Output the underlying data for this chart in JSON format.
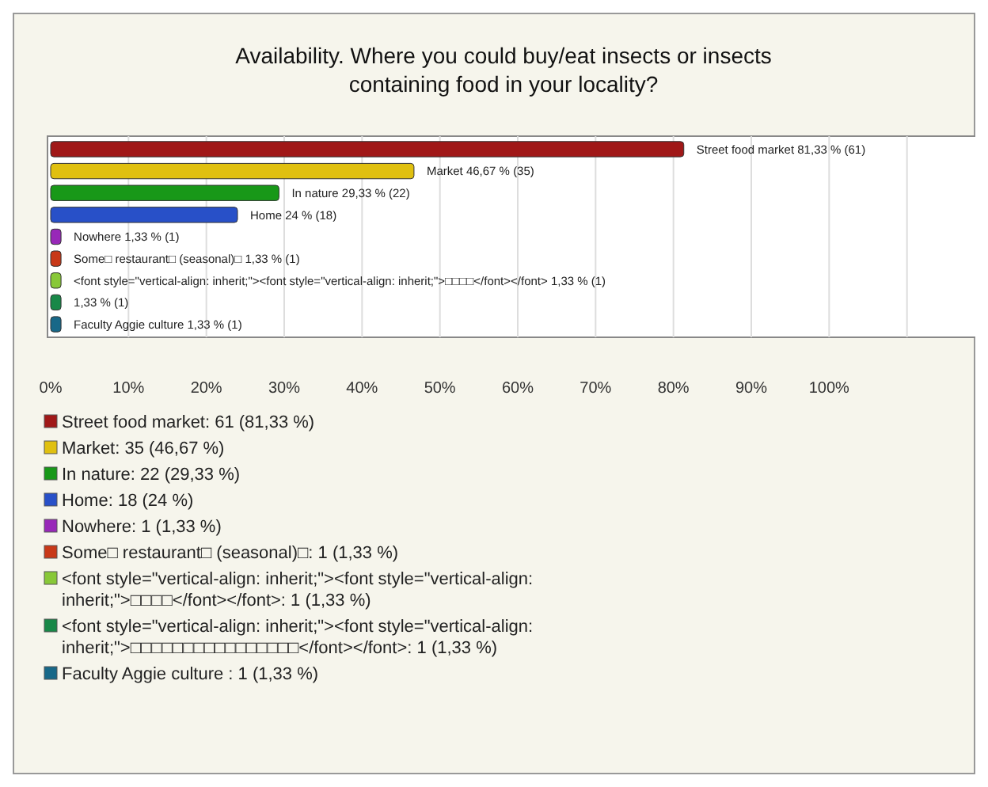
{
  "chart_data": {
    "type": "bar",
    "orientation": "horizontal",
    "title": "Availability. Where you could buy/eat insects or insects containing food in your locality?",
    "categories": [
      "Street food market",
      "Market",
      "In nature",
      "Home",
      "Nowhere",
      "Some□ restaurant□ (seasonal)□",
      "<font style=\"vertical-align: inherit;\"><font style=\"vertical-align: inherit;\">□□□□</font></font>",
      null,
      "Faculty Aggie culture"
    ],
    "values": [
      81.33,
      46.67,
      29.33,
      24,
      1.33,
      1.33,
      1.33,
      1.33,
      1.33
    ],
    "colors": [
      "#a01818",
      "#e0c010",
      "#189818",
      "#2850c8",
      "#9828b8",
      "#c83818",
      "#88c838",
      "#188848",
      "#186888"
    ],
    "value_labels": [
      "81,33 % (61)",
      "46,67 % (35)",
      "29,33 % (22)",
      "24 % (18)",
      "1,33 % (1)",
      "1,33 % (1)",
      "1,33 % (1)",
      "1,33 % (1)",
      "1,33 % (1)"
    ],
    "xlim": [
      0,
      120
    ],
    "xticks": [
      {
        "value": 0,
        "label": "0%"
      },
      {
        "value": 10,
        "label": "10%"
      },
      {
        "value": 20,
        "label": "20%"
      },
      {
        "value": 30,
        "label": "30%"
      },
      {
        "value": 40,
        "label": "40%"
      },
      {
        "value": 50,
        "label": "50%"
      },
      {
        "value": 60,
        "label": "60%"
      },
      {
        "value": 70,
        "label": "70%"
      },
      {
        "value": 80,
        "label": "80%"
      },
      {
        "value": 90,
        "label": "90%"
      },
      {
        "value": 100,
        "label": "100%"
      }
    ],
    "grid": "x",
    "annotations": [
      "Street food market: 61 (81,33 %)",
      "Market: 35 (46,67 %)",
      "In nature: 22 (29,33 %)",
      "Home: 18 (24 %)",
      "Nowhere: 1 (1,33 %)",
      "Some□ restaurant□ (seasonal)□: 1 (1,33 %)",
      "<font style=\"vertical-align: inherit;\"><font style=\"vertical-align:\ninherit;\">□□□□</font></font>: 1 (1,33 %)",
      "<font style=\"vertical-align: inherit;\"><font style=\"vertical-align:\ninherit;\">□□□□□□□□□□□□□□□□</font></font>: 1 (1,33 %)",
      "Faculty Aggie culture : 1 (1,33 %)"
    ]
  }
}
